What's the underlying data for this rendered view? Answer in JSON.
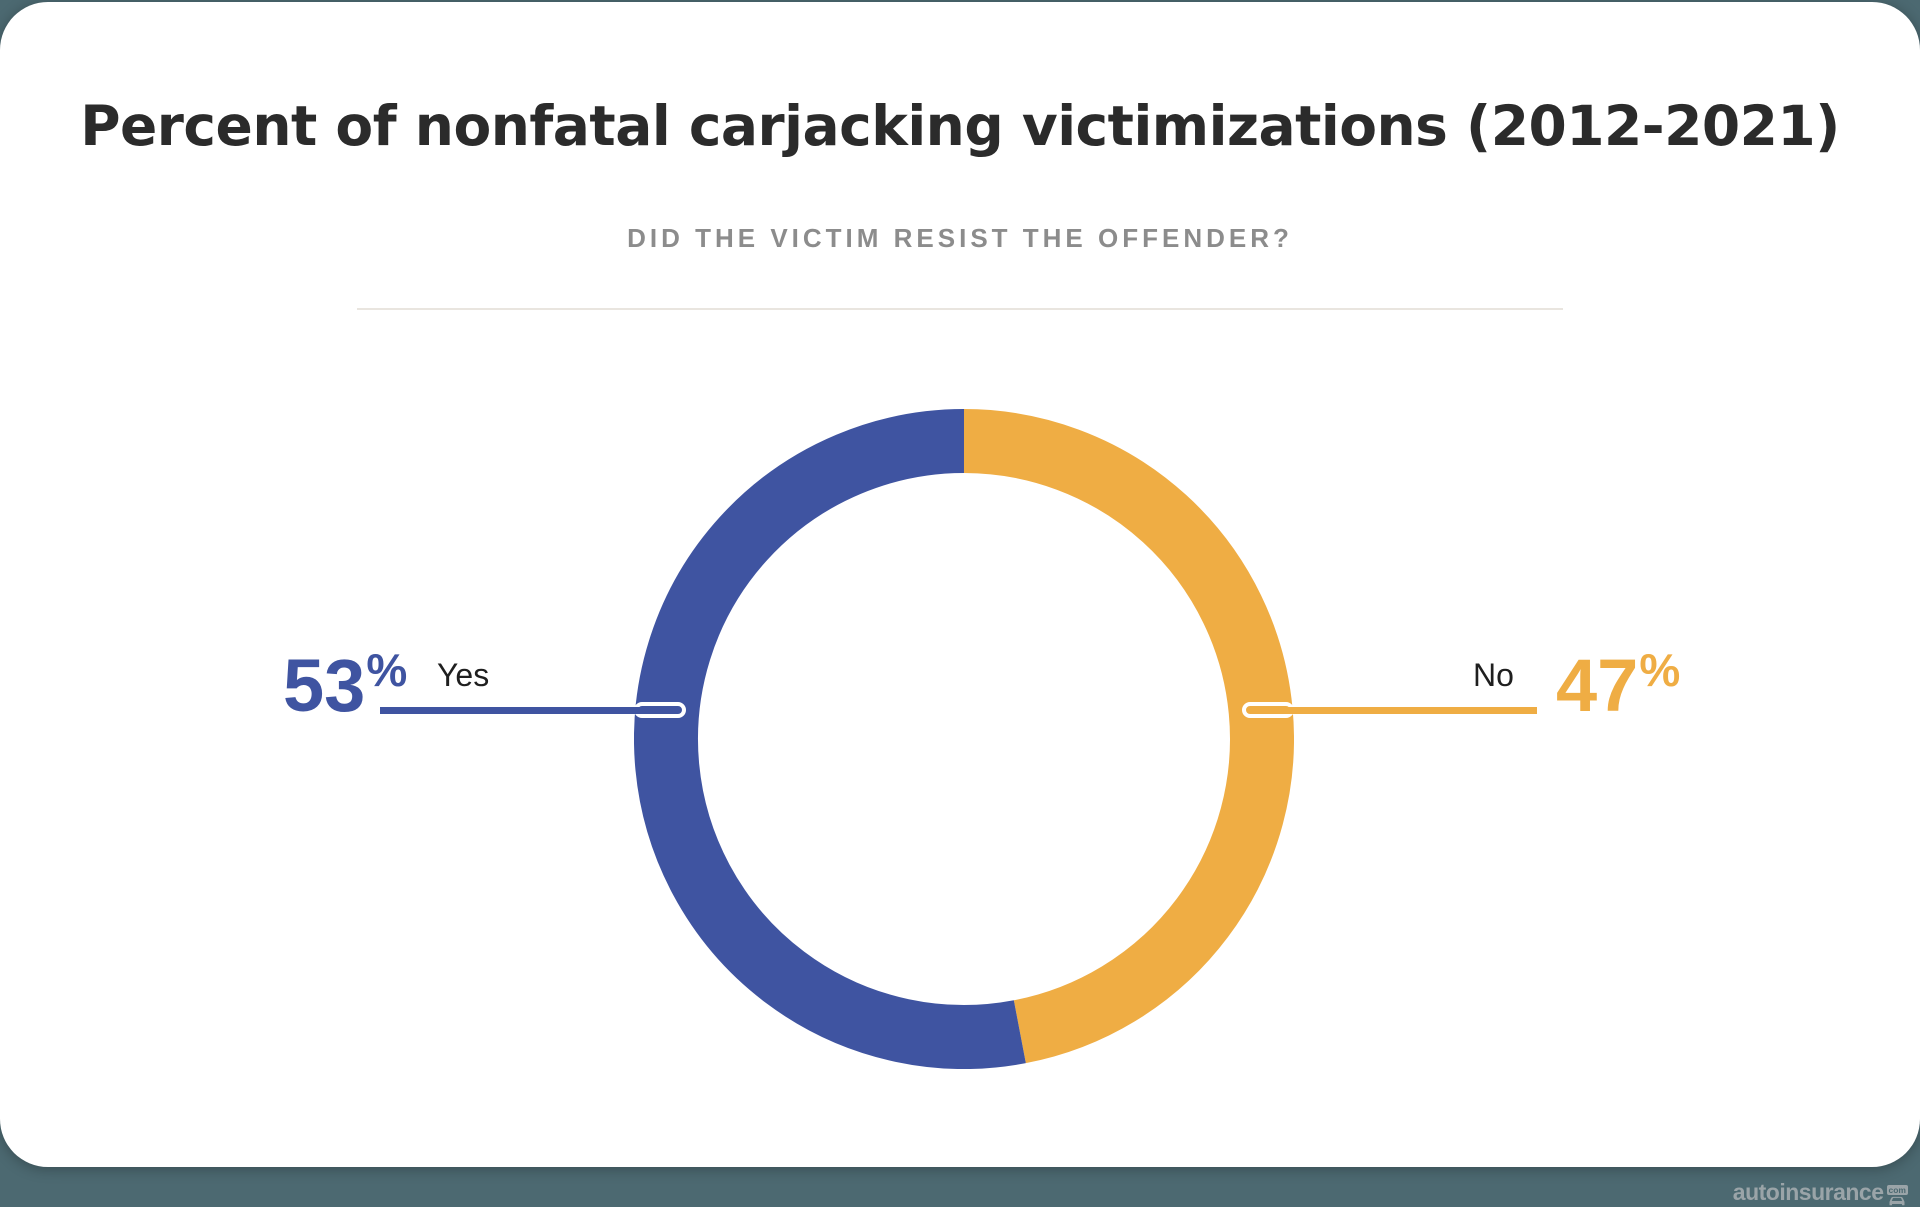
{
  "header": {
    "title": "Percent of nonfatal carjacking victimizations (2012-2021)",
    "subtitle": "DID THE VICTIM RESIST THE OFFENDER?"
  },
  "chart_data": {
    "type": "donut",
    "title": "Percent of nonfatal carjacking victimizations (2012-2021)",
    "subtitle": "DID THE VICTIM RESIST THE OFFENDER?",
    "unit": "%",
    "total": 100,
    "start_position": "top",
    "direction_from_top": "clockwise-no-first",
    "segments": [
      {
        "label": "Yes",
        "value": 53,
        "color": "#3F54A1"
      },
      {
        "label": "No",
        "value": 47,
        "color": "#EFAD44"
      }
    ],
    "legend_position": "sides"
  },
  "watermark": {
    "text": "autoinsurance",
    "badge": "com"
  },
  "colors": {
    "background": "#4C6971",
    "card": "#FFFFFF",
    "title": "#2B2B2B",
    "subtitle": "#8C8C8C",
    "divider": "#E9E5DF",
    "label_text": "#1F1F1F",
    "watermark": "#9AA4A8"
  }
}
